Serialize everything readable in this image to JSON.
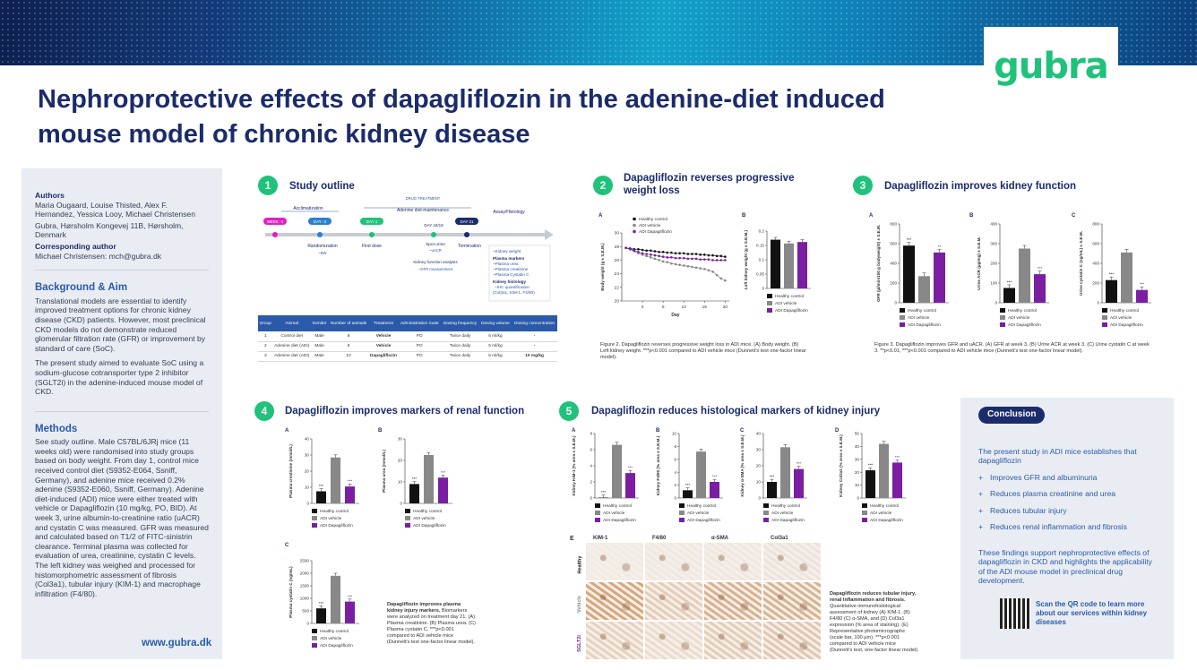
{
  "header": {
    "logo": "gubra",
    "title": "Nephroprotective effects of dapagliflozin in the adenine-diet induced mouse model of chronic kidney disease"
  },
  "left": {
    "authors_label": "Authors",
    "authors": "Maria Ougaard, Louise Thisted, Alex F. Hernandez, Yessica Looy, Michael Christensen",
    "affiliation": "Gubra, Hørsholm Kongevej 11B, Hørsholm, Denmark",
    "corresponding_label": "Corresponding author",
    "corresponding": "Michael Christensen: mch@gubra.dk",
    "bg_title": "Background & Aim",
    "bg_p1": "Translational models are essential to identify improved treatment options for chronic kidney disease (CKD) patients. However, most preclinical CKD models do not demonstrate reduced glomerular filtration rate (GFR) or improvement by standard of care (SoC).",
    "bg_p2": "The present study aimed to evaluate SoC using a sodium-glucose cotransporter type 2 inhibitor (SGLT2i) in the adenine-induced mouse model of CKD.",
    "methods_title": "Methods",
    "methods": "See study outline. Male C57BL/6JRj mice (11 weeks old) were randomised into study groups based on body weight. From day 1, control mice received control diet (S9352-E064, Ssniff, Germany), and adenine mice received 0.2% adenine (S9352-E060, Ssniff, Germany). Adenine diet-induced (ADI) mice were either treated with vehicle or Dapagliflozin (10 mg/kg, PO, BID). At week 3, urine albumin-to-creatinine ratio (uACR) and cystatin C was measured. GFR was measured and calculated based on T1/2 of FITC-sinistrin clearance. Terminal plasma was collected for evaluation of urea, creatinine, cystatin C levels. The left kidney was weighed and processed for histomorphometric assessment of fibrosis (Col3a1), tubular injury (KIM-1) and macrophage infiltration (F4/80).",
    "url": "www.gubra.dk"
  },
  "s1": {
    "num": "1",
    "title": "Study outline",
    "acclimatization": "Acclimatization",
    "drug_treatment": "DRUG TREATMENT",
    "adenine_maint": "Adenine diet-maintenance",
    "assay": "Assay/Histology",
    "week": "WEEK -1",
    "day3": "DAY -3",
    "day1": "DAY 1",
    "day21": "DAY 21",
    "day1819": "DAY 18/19",
    "randomization": "Randomization",
    "bw": "~BW",
    "first_dose": "First dose",
    "termination": "Termination",
    "spot_urine": "Spot urine",
    "uacr": "~uACR",
    "kidney_func": "Kidney function analysis",
    "gfr": "~GFR measurement",
    "readouts": [
      "~Kidney weight",
      "Plasma markers",
      "~Plasma urea",
      "~Plasma creatinine",
      "~Plasma Cystatin C",
      "Kidney histology",
      "~IHC quantification",
      "(Col3a1, KIM-1, F4/80)"
    ],
    "table_head": [
      "Group",
      "Animal",
      "Gender",
      "Number of animals",
      "Treatment",
      "Administration route",
      "Dosing frequency",
      "Dosing volume",
      "Dosing concentration"
    ],
    "table_rows": [
      [
        "1",
        "Control diet",
        "Male",
        "8",
        "Vehicle",
        "PO",
        "Twice daily",
        "5 ml/kg",
        "-"
      ],
      [
        "2",
        "Adenine diet (ADI)",
        "Male",
        "8",
        "Vehicle",
        "PO",
        "Twice daily",
        "5 ml/kg",
        "-"
      ],
      [
        "3",
        "Adenine diet (ADI)",
        "Male",
        "10",
        "Dapagliflozin",
        "PO",
        "Twice daily",
        "5 ml/kg",
        "10 mg/kg"
      ]
    ]
  },
  "s2": {
    "num": "2",
    "title": "Dapagliflozin reverses progressive weight loss",
    "caption": "Figure 2. Dapagliflozin reverses progressive weight loss in ADI mice. (A) Body weight. (B) Left kidney weight. ***p<0.001 compared to ADI vehicle mice (Dunnett's test one-factor linear model)."
  },
  "s3": {
    "num": "3",
    "title": "Dapagliflozin improves kidney function",
    "caption": "Figure 3. Dapagliflozin improves GFR and uACR. (A) GFR at week 3. (B) Urine ACR at week 3. (C) Urine cystatin C at week 3. **p<0.01, ***p<0.001 compared to ADI vehicle mice (Dunnett's test one-factor linear model)."
  },
  "s4": {
    "num": "4",
    "title": "Dapagliflozin improves markers of renal function",
    "caption_title": "Dapagliflozin improves plasma kidney injury markers.",
    "caption": "Biomarkers were analyzed on treatment day 21. (A) Plasma creatinine. (B) Plasma urea. (C) Plasma cystatin C. ***p<0.001 compared to ADI vehicle mice (Dunnett's test one-factor linear model)."
  },
  "s5": {
    "num": "5",
    "title": "Dapagliflozin reduces histological markers of kidney injury",
    "histo_cols": [
      "KIM-1",
      "F4/80",
      "α-SMA",
      "Col3a1"
    ],
    "histo_rows": [
      "Healthy",
      "Vehicle",
      "SGLT2i"
    ],
    "caption_title": "Dapagliflozin reduces tubular injury, renal inflammation and fibrosis.",
    "caption": "Quantitative immunohistological assessment of kidney (A) KIM-1, (B) F4/80 (C) α-SMA, and (D) Col3a1 expression (% area of staining). (E) Representative photomicrographs (scale bar, 100 µm). ***p<0.001 compared to ADI vehicle mice (Dunnett's test, one-factor linear model)."
  },
  "legend": [
    "Healthy control",
    "ADI vehicle",
    "ADI Dapagliflozin"
  ],
  "colors": {
    "healthy": "#111111",
    "vehicle": "#888888",
    "dapa": "#7a1fa2",
    "green": "#1fc27a",
    "navy": "#1b2b6b"
  },
  "conclusion": {
    "badge": "Conclusion",
    "intro": "The present study in ADI mice establishes that dapagliflozin",
    "items": [
      "Improves GFR and albuminuria",
      "Reduces plasma creatinine and urea",
      "Reduces tubular injury",
      "Reduces renal inflammation and fibrosis"
    ],
    "outro": "These findings support nephroprotective effects of dapagliflozin in CKD and highlights the applicability of the ADI mouse model in preclinical drug development.",
    "qr_text": "Scan the QR code to learn more about our services within kidney diseases"
  },
  "chart_data": [
    {
      "id": "2A",
      "type": "line",
      "title": "",
      "xlabel": "Day",
      "ylabel": "Body weight (g ± S.E.M.)",
      "xlim": [
        -5,
        21
      ],
      "ylim": [
        20,
        30
      ],
      "xticks": [
        0,
        5,
        10,
        15,
        20
      ],
      "yticks": [
        20,
        22,
        24,
        26,
        28,
        30
      ],
      "x": [
        -4,
        -3,
        -2,
        -1,
        0,
        1,
        2,
        3,
        4,
        5,
        6,
        7,
        8,
        9,
        10,
        11,
        12,
        13,
        14,
        15,
        16,
        17,
        18,
        19,
        20
      ],
      "series": [
        {
          "name": "Healthy control",
          "values": [
            27.8,
            27.7,
            27.6,
            27.6,
            27.5,
            27.4,
            27.4,
            27.3,
            27.2,
            27.2,
            27.1,
            27.1,
            27.0,
            27.0,
            27.0,
            26.9,
            26.9,
            26.9,
            26.8,
            26.8,
            26.7,
            26.7,
            26.6,
            26.6,
            26.5
          ]
        },
        {
          "name": "ADI vehicle",
          "values": [
            27.8,
            27.6,
            27.3,
            27.0,
            26.8,
            26.6,
            26.4,
            26.2,
            26.0,
            25.8,
            25.7,
            25.5,
            25.4,
            25.3,
            25.2,
            25.1,
            25.0,
            24.9,
            24.8,
            24.7,
            24.5,
            24.3,
            23.8,
            23.3,
            23.0
          ]
        },
        {
          "name": "ADI Dapagliflozin",
          "values": [
            27.8,
            27.6,
            27.4,
            27.2,
            27.0,
            26.9,
            26.8,
            26.7,
            26.6,
            26.5,
            26.4,
            26.4,
            26.3,
            26.3,
            26.3,
            26.2,
            26.2,
            26.2,
            26.1,
            26.1,
            26.1,
            26.0,
            26.0,
            26.0,
            26.0
          ]
        }
      ]
    },
    {
      "id": "2B",
      "type": "bar",
      "ylabel": "Left kidney weight (g ± S.E.M.)",
      "ylim": [
        0,
        0.2
      ],
      "yticks": [
        0,
        0.05,
        0.1,
        0.15,
        0.2
      ],
      "categories": [
        "Healthy control",
        "ADI vehicle",
        "ADI Dapagliflozin"
      ],
      "values": [
        0.17,
        0.157,
        0.162
      ]
    },
    {
      "id": "3A",
      "type": "bar",
      "ylabel": "GFR (µl/min/100 g bodyweight) ± S.E.M.",
      "ylim": [
        0,
        800
      ],
      "yticks": [
        0,
        200,
        400,
        600,
        800
      ],
      "categories": [
        "Healthy control",
        "ADI vehicle",
        "ADI Dapagliflozin"
      ],
      "values": [
        580,
        270,
        510
      ],
      "sig": [
        "***",
        "",
        "**"
      ]
    },
    {
      "id": "3B",
      "type": "bar",
      "ylabel": "Urine ACR (µg/mg) ± S.E.M.",
      "ylim": [
        0,
        400
      ],
      "yticks": [
        0,
        100,
        200,
        300,
        400
      ],
      "categories": [
        "Healthy control",
        "ADI vehicle",
        "ADI Dapagliflozin"
      ],
      "values": [
        75,
        275,
        145
      ],
      "sig": [
        "***",
        "",
        "***"
      ]
    },
    {
      "id": "3C",
      "type": "bar",
      "ylabel": "Urine cystatin C (ng/mL) ± S.E.M.",
      "ylim": [
        0,
        800
      ],
      "yticks": [
        0,
        200,
        400,
        600,
        800
      ],
      "categories": [
        "Healthy control",
        "ADI vehicle",
        "ADI Dapagliflozin"
      ],
      "values": [
        230,
        510,
        130
      ],
      "sig": [
        "***",
        "",
        "***"
      ]
    },
    {
      "id": "4A",
      "type": "bar",
      "ylabel": "Plasma creatinine (mmol/L)",
      "ylim": [
        0,
        40
      ],
      "yticks": [
        0,
        10,
        20,
        30,
        40
      ],
      "categories": [
        "Healthy control",
        "ADI vehicle",
        "ADI Dapagliflozin"
      ],
      "values": [
        7.5,
        28.5,
        10.5
      ],
      "sig": [
        "***",
        "",
        "***"
      ]
    },
    {
      "id": "4B",
      "type": "bar",
      "ylabel": "Plasma urea (mmol/L)",
      "ylim": [
        0,
        30
      ],
      "yticks": [
        0,
        10,
        20,
        30
      ],
      "categories": [
        "Healthy control",
        "ADI vehicle",
        "ADI Dapagliflozin"
      ],
      "values": [
        9,
        22.5,
        12
      ],
      "sig": [
        "***",
        "",
        "***"
      ]
    },
    {
      "id": "4C",
      "type": "bar",
      "ylabel": "Plasma cystatin C (ng/mL)",
      "ylim": [
        0,
        2500
      ],
      "yticks": [
        0,
        500,
        1000,
        1500,
        2000,
        2500
      ],
      "categories": [
        "Healthy control",
        "ADI vehicle",
        "ADI Dapagliflozin"
      ],
      "values": [
        600,
        1900,
        870
      ],
      "sig": [
        "***",
        "",
        "***"
      ]
    },
    {
      "id": "5A",
      "type": "bar",
      "ylabel": "Kidney KIM-1 (% area ± S.E.M.)",
      "ylim": [
        0,
        8
      ],
      "yticks": [
        0,
        2,
        4,
        6,
        8
      ],
      "categories": [
        "Healthy control",
        "ADI vehicle",
        "ADI Dapagliflozin"
      ],
      "values": [
        0.05,
        6.6,
        3.1
      ],
      "sig": [
        "***",
        "",
        "***"
      ]
    },
    {
      "id": "5B",
      "type": "bar",
      "ylabel": "Kidney F4/80 (% area ± S.E.M.)",
      "ylim": [
        0,
        10
      ],
      "yticks": [
        0,
        2,
        4,
        6,
        8,
        10
      ],
      "categories": [
        "Healthy control",
        "ADI vehicle",
        "ADI Dapagliflozin"
      ],
      "values": [
        1.2,
        7.2,
        2.5
      ],
      "sig": [
        "***",
        "",
        "***"
      ]
    },
    {
      "id": "5C",
      "type": "bar",
      "ylabel": "Kidney α-SMA (% area ± S.E.M.)",
      "ylim": [
        0,
        40
      ],
      "yticks": [
        0,
        10,
        20,
        30,
        40
      ],
      "categories": [
        "Healthy control",
        "ADI vehicle",
        "ADI Dapagliflozin"
      ],
      "values": [
        10,
        31.5,
        18
      ],
      "sig": [
        "***",
        "",
        "***"
      ]
    },
    {
      "id": "5D",
      "type": "bar",
      "ylabel": "Kidney Col3a1 (% area ± S.E.M.)",
      "ylim": [
        0,
        50
      ],
      "yticks": [
        0,
        10,
        20,
        30,
        40,
        50
      ],
      "categories": [
        "Healthy control",
        "ADI vehicle",
        "ADI Dapagliflozin"
      ],
      "values": [
        21.5,
        42,
        27.5
      ],
      "sig": [
        "***",
        "",
        "***"
      ]
    }
  ]
}
